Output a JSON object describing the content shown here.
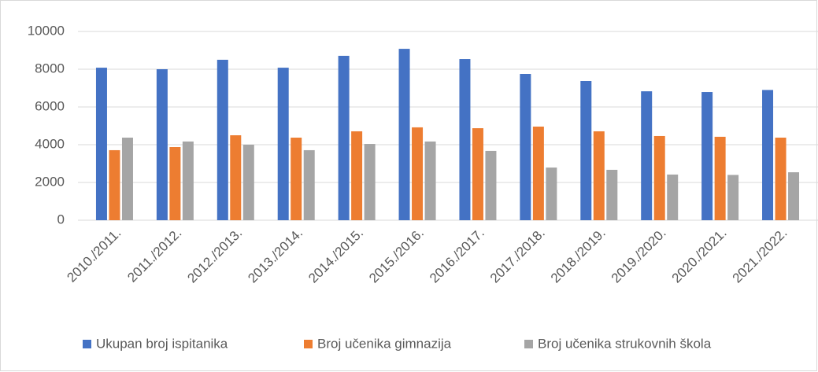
{
  "chart_data": {
    "type": "bar",
    "categories": [
      "2010./2011.",
      "2011./2012.",
      "2012./2013.",
      "2013./2014.",
      "2014./2015.",
      "2015./2016.",
      "2016./2017.",
      "2017./2018.",
      "2018./2019.",
      "2019./2020.",
      "2020./2021.",
      "2021./2022."
    ],
    "series": [
      {
        "name": "Ukupan broj ispitanika",
        "color": "#4472c4",
        "values": [
          8080,
          8000,
          8500,
          8080,
          8710,
          9080,
          8540,
          7750,
          7375,
          6830,
          6790,
          6900
        ]
      },
      {
        "name": "Broj učenika gimnazija",
        "color": "#ed7d31",
        "values": [
          3710,
          3875,
          4500,
          4375,
          4710,
          4920,
          4875,
          4960,
          4710,
          4460,
          4420,
          4375
        ]
      },
      {
        "name": "Broj učenika strukovnih škola",
        "color": "#a5a5a5",
        "values": [
          4375,
          4170,
          4000,
          3710,
          4040,
          4170,
          3670,
          2790,
          2670,
          2420,
          2400,
          2540
        ]
      }
    ],
    "ylim": [
      0,
      10000
    ],
    "yticks": [
      0,
      2000,
      4000,
      6000,
      8000,
      10000
    ],
    "grid": true,
    "legend": "bottom"
  }
}
